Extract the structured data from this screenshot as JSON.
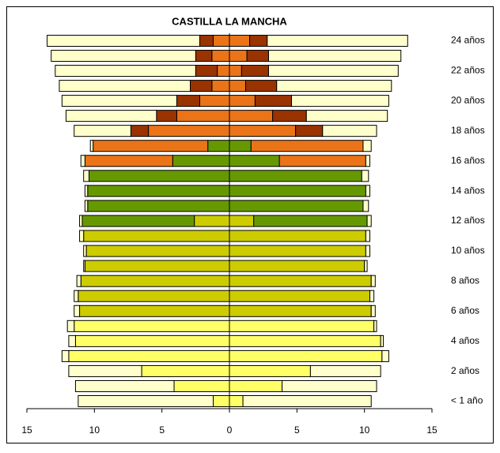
{
  "chart_data": {
    "type": "bar",
    "orientation": "horizontal",
    "stacked": true,
    "title": "CASTILLA LA MANCHA",
    "categories": [
      "< 1 año",
      null,
      "2 años",
      null,
      "4 años",
      null,
      "6 años",
      null,
      "8 años",
      null,
      "10 años",
      null,
      "12 años",
      null,
      "14 años",
      null,
      "16 años",
      null,
      "18 años",
      null,
      "20 años",
      null,
      "22 años",
      null,
      "24 años"
    ],
    "xlim": [
      -15,
      15
    ],
    "xticks": [
      {
        "value": -15,
        "label": "15"
      },
      {
        "value": -10,
        "label": "10"
      },
      {
        "value": -5,
        "label": "5"
      },
      0,
      5,
      10,
      15
    ],
    "series": [
      {
        "color": "#ffff66",
        "values": [
          -1.2,
          -4.1,
          -6.5,
          -11.9,
          -11.4,
          -11.5,
          0,
          0,
          0,
          0,
          0,
          0,
          0,
          0,
          0,
          0,
          0,
          0,
          0,
          0,
          0,
          0,
          0,
          0,
          0
        ]
      },
      {
        "color": "#ffff66",
        "values": [
          1.0,
          3.9,
          6.0,
          11.3,
          11.2,
          10.7,
          0,
          0,
          0,
          0,
          0,
          0,
          0,
          0,
          0,
          0,
          0,
          0,
          0,
          0,
          0,
          0,
          0,
          0,
          0
        ]
      },
      {
        "color": "#cccc00",
        "values": [
          0,
          0,
          0,
          0,
          0,
          0,
          -11.1,
          -11.2,
          -11.0,
          -10.7,
          -10.6,
          -10.8,
          -2.6,
          0,
          0,
          0,
          0,
          0,
          0,
          0,
          0,
          0,
          0,
          0,
          0
        ]
      },
      {
        "color": "#cccc00",
        "values": [
          0,
          0,
          0,
          0,
          0,
          0,
          10.5,
          10.4,
          10.5,
          10.0,
          10.1,
          10.1,
          1.8,
          0,
          0,
          0,
          0,
          0,
          0,
          0,
          0,
          0,
          0,
          0,
          0
        ]
      },
      {
        "color": "#669900",
        "values": [
          0,
          0,
          0,
          0,
          0,
          0,
          0,
          0,
          0,
          0,
          0,
          0,
          -8.3,
          -10.5,
          -10.5,
          -10.4,
          -4.2,
          -1.6,
          0,
          0,
          0,
          0,
          0,
          0,
          0
        ]
      },
      {
        "color": "#669900",
        "values": [
          0,
          0,
          0,
          0,
          0,
          0,
          0,
          0,
          0,
          0,
          0,
          0,
          8.4,
          9.9,
          10.1,
          9.8,
          3.7,
          1.6,
          0,
          0,
          0,
          0,
          0,
          0,
          0
        ]
      },
      {
        "color": "#ea7417",
        "values": [
          0,
          0,
          0,
          0,
          0,
          0,
          0,
          0,
          0,
          0,
          0,
          0,
          0,
          0,
          0,
          0,
          -6.5,
          -8.5,
          -6.0,
          -3.9,
          -2.2,
          -1.3,
          -0.9,
          -1.3,
          -1.2
        ]
      },
      {
        "color": "#ea7417",
        "values": [
          0,
          0,
          0,
          0,
          0,
          0,
          0,
          0,
          0,
          0,
          0,
          0,
          0,
          0,
          0,
          0,
          6.4,
          8.3,
          4.9,
          3.2,
          1.9,
          1.2,
          0.9,
          1.3,
          1.5
        ]
      },
      {
        "color": "#993300",
        "values": [
          0,
          0,
          0,
          0,
          0,
          0,
          0,
          0,
          0,
          0,
          0,
          0,
          0,
          0,
          0,
          0,
          0,
          0,
          -1.3,
          -1.5,
          -1.7,
          -1.6,
          -1.6,
          -1.2,
          -1.0
        ]
      },
      {
        "color": "#993300",
        "values": [
          0,
          0,
          0,
          0,
          0,
          0,
          0,
          0,
          0,
          0,
          0,
          0,
          0,
          0,
          0,
          0,
          0,
          0,
          2.0,
          2.5,
          2.7,
          2.3,
          2.0,
          1.6,
          1.3
        ]
      },
      {
        "color": "#ffffcc",
        "values": [
          -10.0,
          -7.3,
          -5.4,
          -0.5,
          -0.5,
          -0.5,
          -0.4,
          -0.3,
          -0.3,
          -0.1,
          -0.2,
          -0.3,
          -0.2,
          -0.2,
          -0.2,
          -0.4,
          -0.3,
          -0.2,
          -4.2,
          -6.7,
          -8.5,
          -9.7,
          -10.4,
          -10.7,
          -11.3
        ]
      },
      {
        "color": "#ffffcc",
        "values": [
          9.5,
          7.0,
          5.2,
          0.5,
          0.2,
          0.2,
          0.3,
          0.3,
          0.3,
          0.2,
          0.3,
          0.3,
          0.3,
          0.4,
          0.3,
          0.5,
          0.3,
          0.6,
          4.0,
          6.0,
          7.2,
          8.5,
          9.6,
          9.8,
          10.4
        ]
      }
    ]
  }
}
